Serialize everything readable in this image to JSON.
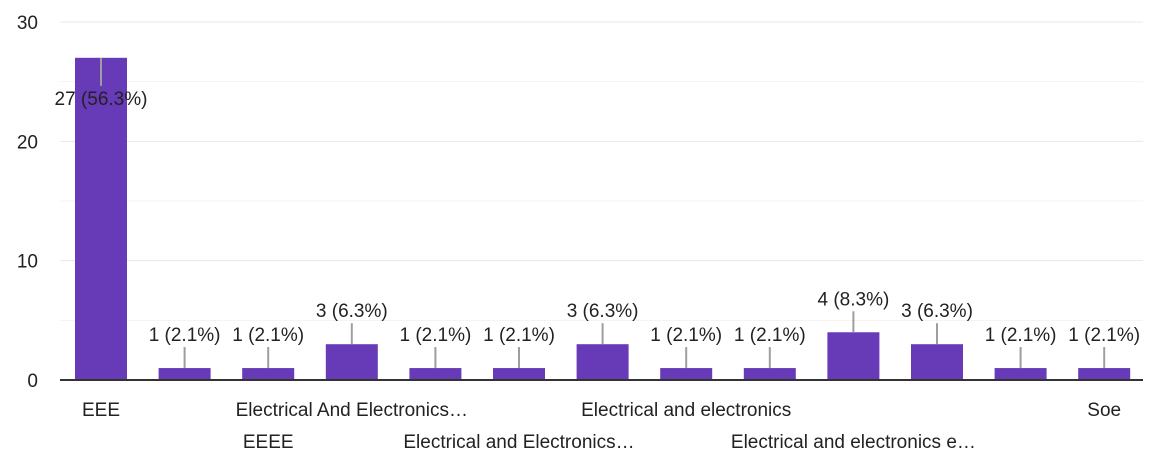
{
  "colors": {
    "bar": "#673ab7",
    "gridline": "#e8e8e8",
    "minor_gridline": "#f3f3f3",
    "axis": "#333333",
    "leader": "#9e9e9e",
    "text": "#222222"
  },
  "chart_data": {
    "type": "bar",
    "title": "",
    "xlabel": "",
    "ylabel": "",
    "ylim": [
      0,
      30
    ],
    "yticks": [
      "0",
      "10",
      "20",
      "30"
    ],
    "grid": true,
    "categories": [
      "EEE",
      "",
      "EEEE",
      "Electrical And Electronics…",
      "",
      "Electrical and Electronics…",
      "",
      "Electrical and electronics",
      "",
      "Electrical and electronics e…",
      "",
      "",
      "Soe"
    ],
    "values": [
      27,
      1,
      1,
      3,
      1,
      1,
      3,
      1,
      1,
      4,
      3,
      1,
      1
    ],
    "data_labels": [
      "27 (56.3%)",
      "1 (2.1%)",
      "1 (2.1%)",
      "3 (6.3%)",
      "1 (2.1%)",
      "1 (2.1%)",
      "3 (6.3%)",
      "1 (2.1%)",
      "1 (2.1%)",
      "4 (8.3%)",
      "3 (6.3%)",
      "1 (2.1%)",
      "1 (2.1%)"
    ]
  }
}
